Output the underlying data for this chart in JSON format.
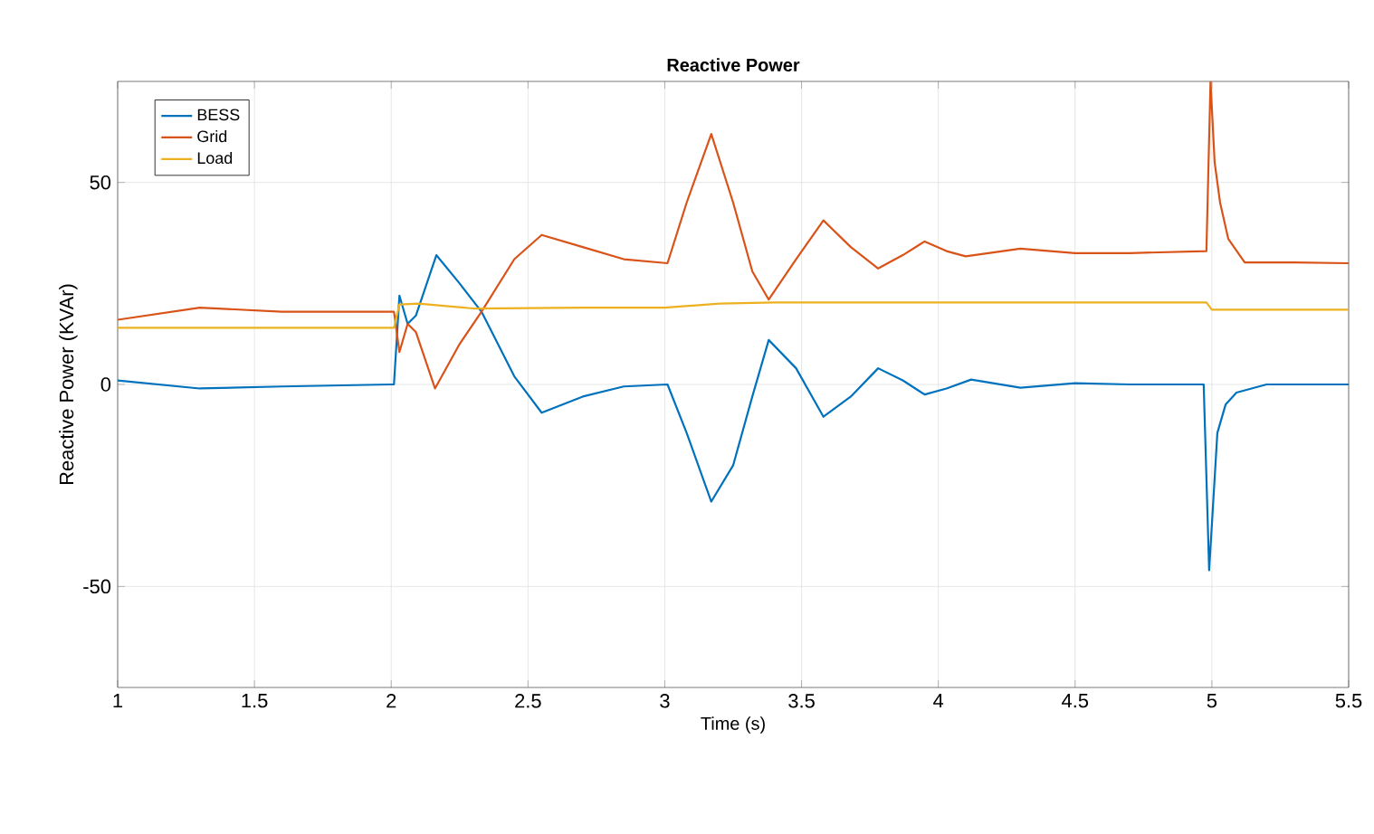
{
  "chart_data": {
    "type": "line",
    "title": "Reactive Power",
    "xlabel": "Time (s)",
    "ylabel": "Reactive Power (KVAr)",
    "xlim": [
      1,
      5.5
    ],
    "ylim": [
      -75,
      75
    ],
    "xticks": [
      1,
      1.5,
      2,
      2.5,
      3,
      3.5,
      4,
      4.5,
      5,
      5.5
    ],
    "yticks": [
      -50,
      0,
      50
    ],
    "grid": true,
    "legend": "top left",
    "marker": "none",
    "line_style": "solid",
    "series": [
      {
        "name": "BESS",
        "color": "#0072bd",
        "x": [
          1,
          1.3,
          1.6,
          2.0,
          2.01,
          2.03,
          2.06,
          2.09,
          2.165,
          2.25,
          2.33,
          2.45,
          2.55,
          2.7,
          2.85,
          3.01,
          3.08,
          3.17,
          3.25,
          3.32,
          3.38,
          3.48,
          3.58,
          3.68,
          3.78,
          3.87,
          3.95,
          4.03,
          4.12,
          4.3,
          4.5,
          4.7,
          4.97,
          4.99,
          5.02,
          5.05,
          5.09,
          5.2,
          5.5
        ],
        "values": [
          1,
          -1,
          -0.5,
          0,
          0,
          22,
          15,
          17,
          32,
          25,
          18,
          2,
          -7,
          -3,
          -0.5,
          0,
          -12,
          -29,
          -20,
          -3,
          11,
          4,
          -8,
          -3,
          4,
          1,
          -2.5,
          -1,
          1.2,
          -0.8,
          0.3,
          0,
          0,
          -46,
          -12,
          -5,
          -2,
          0,
          0
        ]
      },
      {
        "name": "Grid",
        "color": "#d95319",
        "x": [
          1,
          1.3,
          1.6,
          2.0,
          2.01,
          2.03,
          2.06,
          2.09,
          2.16,
          2.25,
          2.33,
          2.45,
          2.55,
          2.7,
          2.85,
          3.01,
          3.08,
          3.17,
          3.25,
          3.32,
          3.38,
          3.48,
          3.58,
          3.68,
          3.78,
          3.87,
          3.95,
          4.03,
          4.1,
          4.3,
          4.5,
          4.7,
          4.98,
          4.995,
          5.01,
          5.03,
          5.06,
          5.12,
          5.3,
          5.5
        ],
        "values": [
          16,
          19,
          18,
          18,
          18,
          8,
          15,
          13,
          -1,
          10,
          18,
          31,
          37,
          34,
          31,
          30,
          45,
          62,
          45,
          28,
          21,
          31,
          40.6,
          34,
          28.7,
          32,
          35.4,
          33,
          31.7,
          33.6,
          32.5,
          32.5,
          33,
          75,
          55,
          45,
          36,
          30.2,
          30.2,
          30
        ]
      },
      {
        "name": "Load",
        "color": "#edb120",
        "x": [
          1,
          1.5,
          2.0,
          2.01,
          2.03,
          2.1,
          2.3,
          2.7,
          3.0,
          3.2,
          3.4,
          4.0,
          4.5,
          4.98,
          5.0,
          5.5
        ],
        "values": [
          14,
          14,
          14,
          14,
          19.8,
          20,
          18.8,
          19,
          19,
          20,
          20.3,
          20.3,
          20.3,
          20.3,
          18.5,
          18.5
        ]
      }
    ]
  }
}
